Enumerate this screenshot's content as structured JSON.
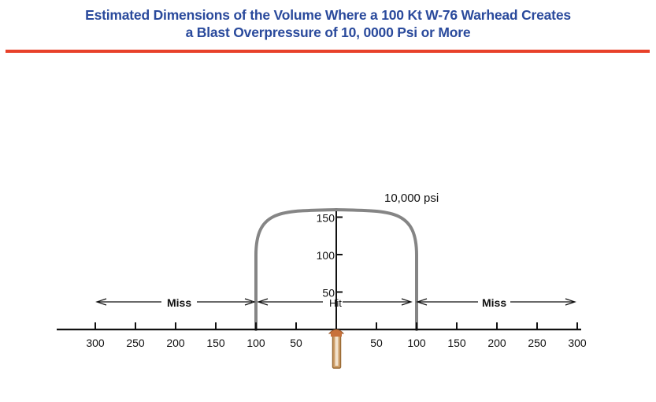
{
  "title": {
    "line1": "Estimated Dimensions of the Volume Where a 100 Kt W-76 Warhead Creates",
    "line2": "a Blast Overpressure of 10, 0000 Psi or More"
  },
  "colors": {
    "title": "#2a4a9c",
    "rule": "#e8412a",
    "contour": "#858585",
    "warhead": "#b07a3c",
    "axis": "#111111"
  },
  "contour_label": "10,000 psi",
  "zone_labels": {
    "miss_left": "Miss",
    "hit": "Hit",
    "miss_right": "Miss"
  },
  "horizontal_axis": {
    "ticks": [
      300,
      250,
      200,
      150,
      100,
      50,
      0,
      50,
      100,
      150,
      200,
      250,
      300
    ],
    "labels": [
      "300",
      "250",
      "200",
      "150",
      "100",
      "50",
      "",
      "50",
      "100",
      "150",
      "200",
      "250",
      "300"
    ]
  },
  "vertical_axis": {
    "ticks": [
      50,
      100,
      150
    ],
    "labels": [
      "50",
      "100",
      "150"
    ]
  },
  "contour": {
    "half_width": 100,
    "height": 160
  },
  "warhead_icon": "warhead-icon"
}
